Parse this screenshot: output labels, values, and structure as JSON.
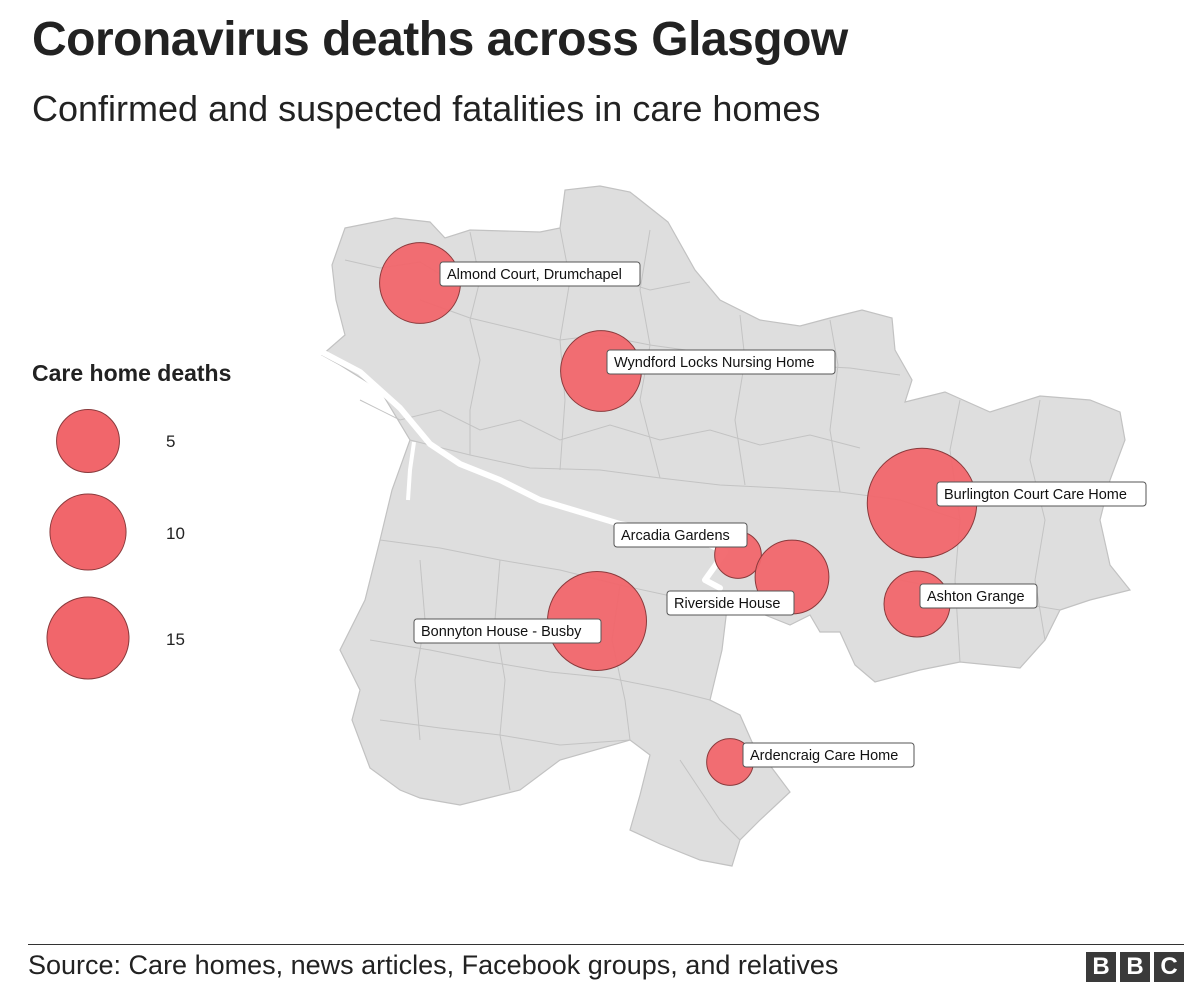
{
  "title": "Coronavirus deaths across Glasgow",
  "subtitle": "Confirmed and suspected fatalities in care homes",
  "legend": {
    "title": "Care home deaths",
    "items": [
      {
        "value": 5,
        "label": "5"
      },
      {
        "value": 10,
        "label": "10"
      },
      {
        "value": 15,
        "label": "15"
      }
    ]
  },
  "colors": {
    "bubble_fill": "#f1666b",
    "bubble_stroke": "#8a3a3c",
    "land": "#dedede",
    "boundary": "#b9b9b9"
  },
  "map_data": {
    "measure": "Care home deaths",
    "care_homes": [
      {
        "name": "Almond Court, Drumchapel",
        "deaths": 6
      },
      {
        "name": "Wyndford Locks Nursing Home",
        "deaths": 6
      },
      {
        "name": "Burlington Court Care Home",
        "deaths": 11
      },
      {
        "name": "Arcadia Gardens",
        "deaths": 2
      },
      {
        "name": "Riverside House",
        "deaths": 5
      },
      {
        "name": "Ashton Grange",
        "deaths": 4
      },
      {
        "name": "Bonnyton House - Busby",
        "deaths": 9
      },
      {
        "name": "Ardencraig Care Home",
        "deaths": 2
      }
    ]
  },
  "footer": {
    "source": "Source: Care homes, news articles, Facebook groups, and relatives",
    "logo": "BBC"
  }
}
